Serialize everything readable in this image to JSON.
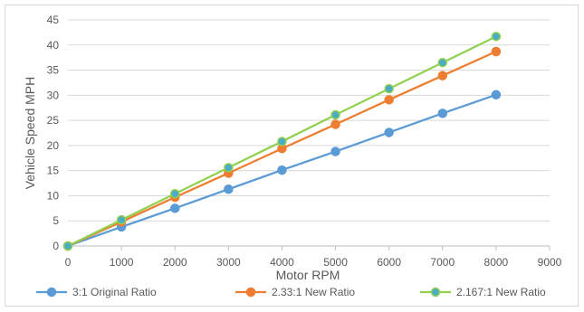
{
  "chart_data": {
    "type": "line",
    "title": "",
    "xlabel": "Motor RPM",
    "ylabel": "Vehicle Speed MPH",
    "xlim": [
      0,
      9000
    ],
    "ylim": [
      0,
      45
    ],
    "xticks": [
      0,
      1000,
      2000,
      3000,
      4000,
      5000,
      6000,
      7000,
      8000,
      9000
    ],
    "yticks": [
      0,
      5,
      10,
      15,
      20,
      25,
      30,
      35,
      40,
      45
    ],
    "grid": "horizontal",
    "legend_position": "bottom",
    "x": [
      0,
      1000,
      2000,
      3000,
      4000,
      5000,
      6000,
      7000,
      8000
    ],
    "series": [
      {
        "name": "3:1 Original Ratio",
        "color": "#5b9bd5",
        "marker_fill": "#5b9bd5",
        "values": [
          0,
          3.8,
          7.5,
          11.3,
          15.1,
          18.8,
          22.6,
          26.4,
          30.1
        ]
      },
      {
        "name": "2.33:1 New Ratio",
        "color": "#ed7d31",
        "marker_fill": "#ed7d31",
        "values": [
          0,
          4.8,
          9.7,
          14.5,
          19.4,
          24.2,
          29.1,
          33.9,
          38.7
        ]
      },
      {
        "name": "2.167:1 New Ratio",
        "color": "#92d050",
        "marker_fill": "#4bacc6",
        "values": [
          0,
          5.2,
          10.4,
          15.6,
          20.8,
          26.1,
          31.3,
          36.5,
          41.7
        ]
      }
    ]
  }
}
